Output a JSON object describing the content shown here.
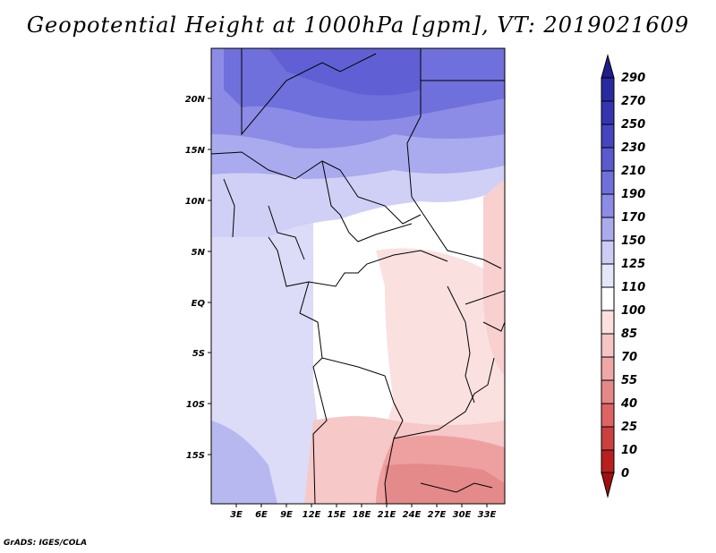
{
  "title": "Geopotential Height at 1000hPa [gpm], VT: 2019021609",
  "footer": "GrADS: IGES/COLA",
  "map": {
    "lat_labels": [
      "20N",
      "15N",
      "10N",
      "5N",
      "EQ",
      "5S",
      "10S",
      "15S"
    ],
    "lon_labels": [
      "3E",
      "6E",
      "9E",
      "12E",
      "15E",
      "18E",
      "21E",
      "24E",
      "27E",
      "30E",
      "33E"
    ]
  },
  "colorbar": {
    "labels": [
      "290",
      "270",
      "250",
      "230",
      "210",
      "190",
      "170",
      "150",
      "125",
      "110",
      "100",
      "85",
      "70",
      "55",
      "40",
      "25",
      "10",
      "0"
    ],
    "colors": [
      "#1e1e8c",
      "#2a2aa0",
      "#3535b2",
      "#4545c0",
      "#5a5acf",
      "#7070dc",
      "#8c8ce6",
      "#aaaaee",
      "#ccccf5",
      "#e6e6fa",
      "#ffffff",
      "#fbe0e0",
      "#f6c4c4",
      "#eea8a8",
      "#e68888",
      "#dc6464",
      "#cc4040",
      "#b82020",
      "#a01010"
    ]
  }
}
